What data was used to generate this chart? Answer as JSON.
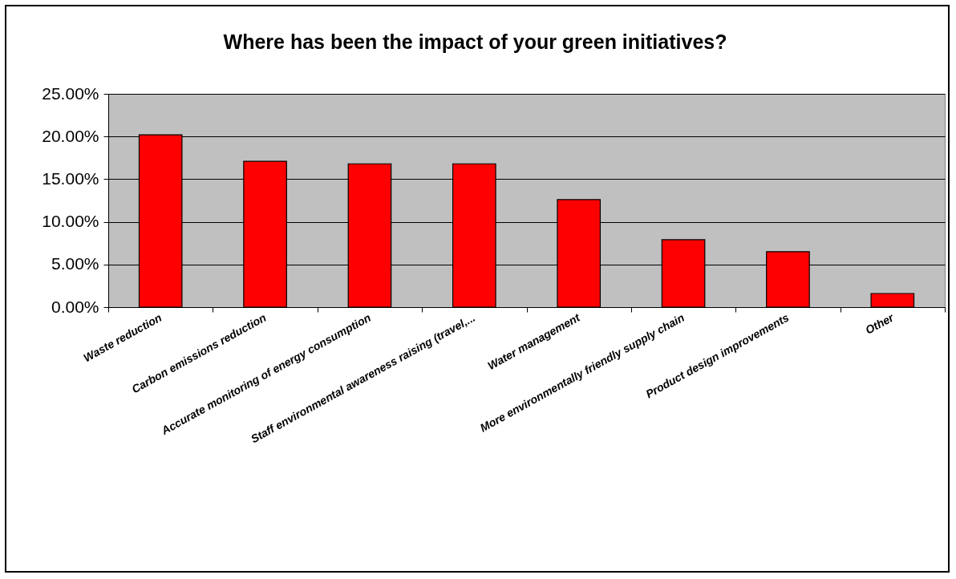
{
  "chart_data": {
    "type": "bar",
    "title": "Where has been the impact of your green initiatives?",
    "categories": [
      "Waste reduction",
      "Carbon emissions reduction",
      "Accurate monitoring of energy consumption",
      "Staff environmental awareness raising (travel,...",
      "Water management",
      "More environmentally friendly supply chain",
      "Product design improvements",
      "Other"
    ],
    "values": [
      20.2,
      17.1,
      16.8,
      16.8,
      12.6,
      7.9,
      6.5,
      1.6
    ],
    "color": "#ff0000",
    "ylim": [
      0,
      25
    ],
    "yticks": [
      {
        "value": 0,
        "label": "0.00%"
      },
      {
        "value": 5,
        "label": "5.00%"
      },
      {
        "value": 10,
        "label": "10.00%"
      },
      {
        "value": 15,
        "label": "15.00%"
      },
      {
        "value": 20,
        "label": "20.00%"
      },
      {
        "value": 25,
        "label": "25.00%"
      }
    ],
    "grid": "y"
  }
}
